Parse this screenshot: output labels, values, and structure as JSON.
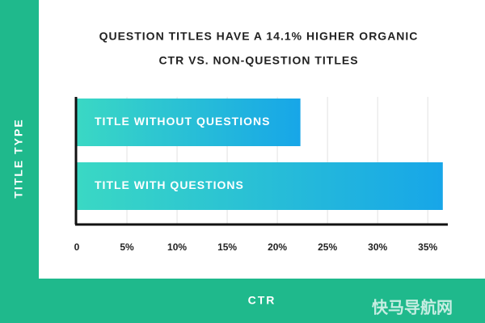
{
  "chart_data": {
    "type": "bar",
    "orientation": "horizontal",
    "title": [
      "QUESTION TITLES HAVE A 14.1% HIGHER ORGANIC",
      "CTR VS. NON-QUESTION TITLES"
    ],
    "y_label": "TITLE TYPE",
    "x_label": "CTR",
    "categories": [
      "TITLE WITHOUT QUESTIONS",
      "TITLE WITH QUESTIONS"
    ],
    "values": [
      22.3,
      36.5
    ],
    "colors": [
      "#3ad8c4",
      "#17a6e8"
    ],
    "xlim": [
      0,
      37
    ],
    "xticks": [
      0,
      {
        "value": 5,
        "label": "5%"
      },
      {
        "value": 10,
        "label": "10%"
      },
      {
        "value": 15,
        "label": "15%"
      },
      {
        "value": 20,
        "label": "20%"
      },
      {
        "value": 25,
        "label": "25%"
      },
      {
        "value": 30,
        "label": "30%"
      },
      {
        "value": 35,
        "label": "35%"
      }
    ],
    "grid": true,
    "watermark": "快马导航网"
  }
}
